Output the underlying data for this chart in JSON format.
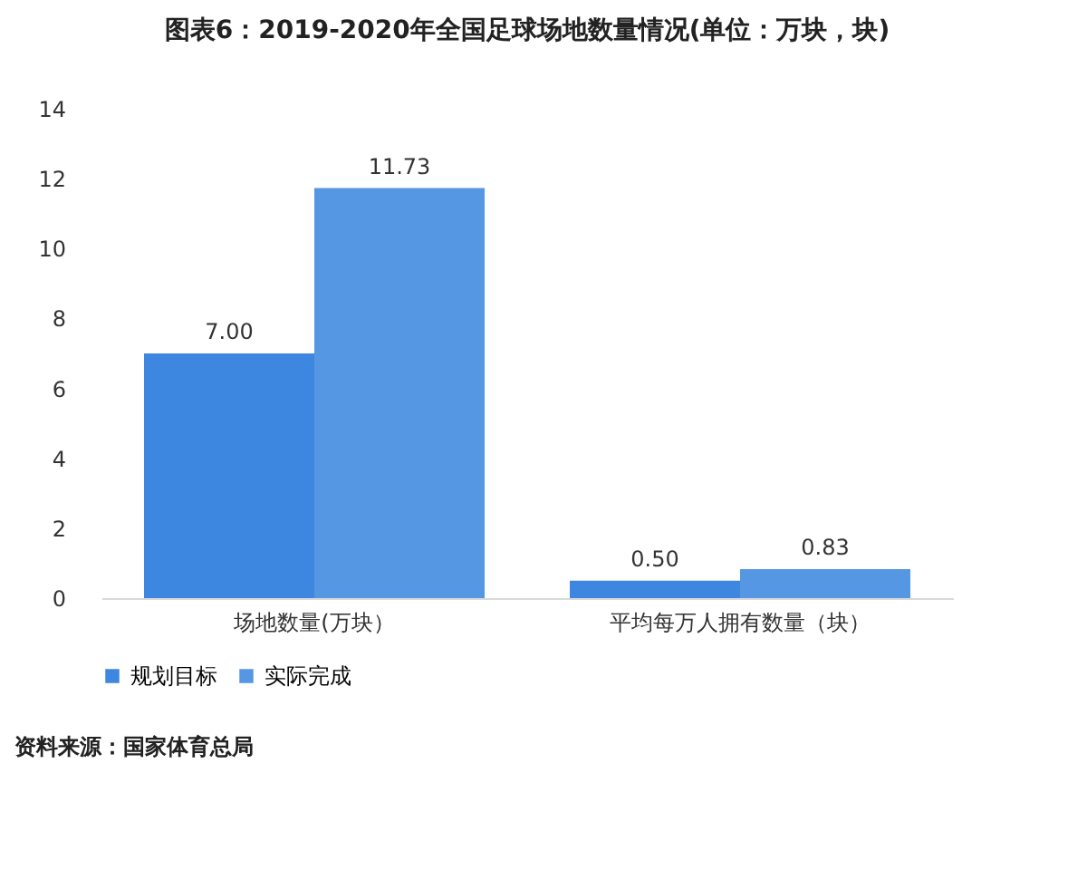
{
  "chart_data": {
    "type": "bar",
    "title": "图表6：2019-2020年全国足球场地数量情况(单位：万块，块)",
    "categories": [
      "场地数量(万块）",
      "平均每万人拥有数量（块）"
    ],
    "series": [
      {
        "name": "规划目标",
        "color": "#3e87e0",
        "values": [
          7,
          0.5
        ],
        "value_labels": [
          "7.00",
          "0.50"
        ]
      },
      {
        "name": "实际完成",
        "color": "#5597e2",
        "values": [
          11.73,
          0.83
        ],
        "value_labels": [
          "11.73",
          "0.83"
        ]
      }
    ],
    "ylim": [
      0,
      14
    ],
    "yticks": [
      0,
      2,
      4,
      6,
      8,
      10,
      12,
      14
    ],
    "grid": false,
    "legend": "bottom",
    "annotations": [
      "资料来源：国家体育总局"
    ]
  }
}
